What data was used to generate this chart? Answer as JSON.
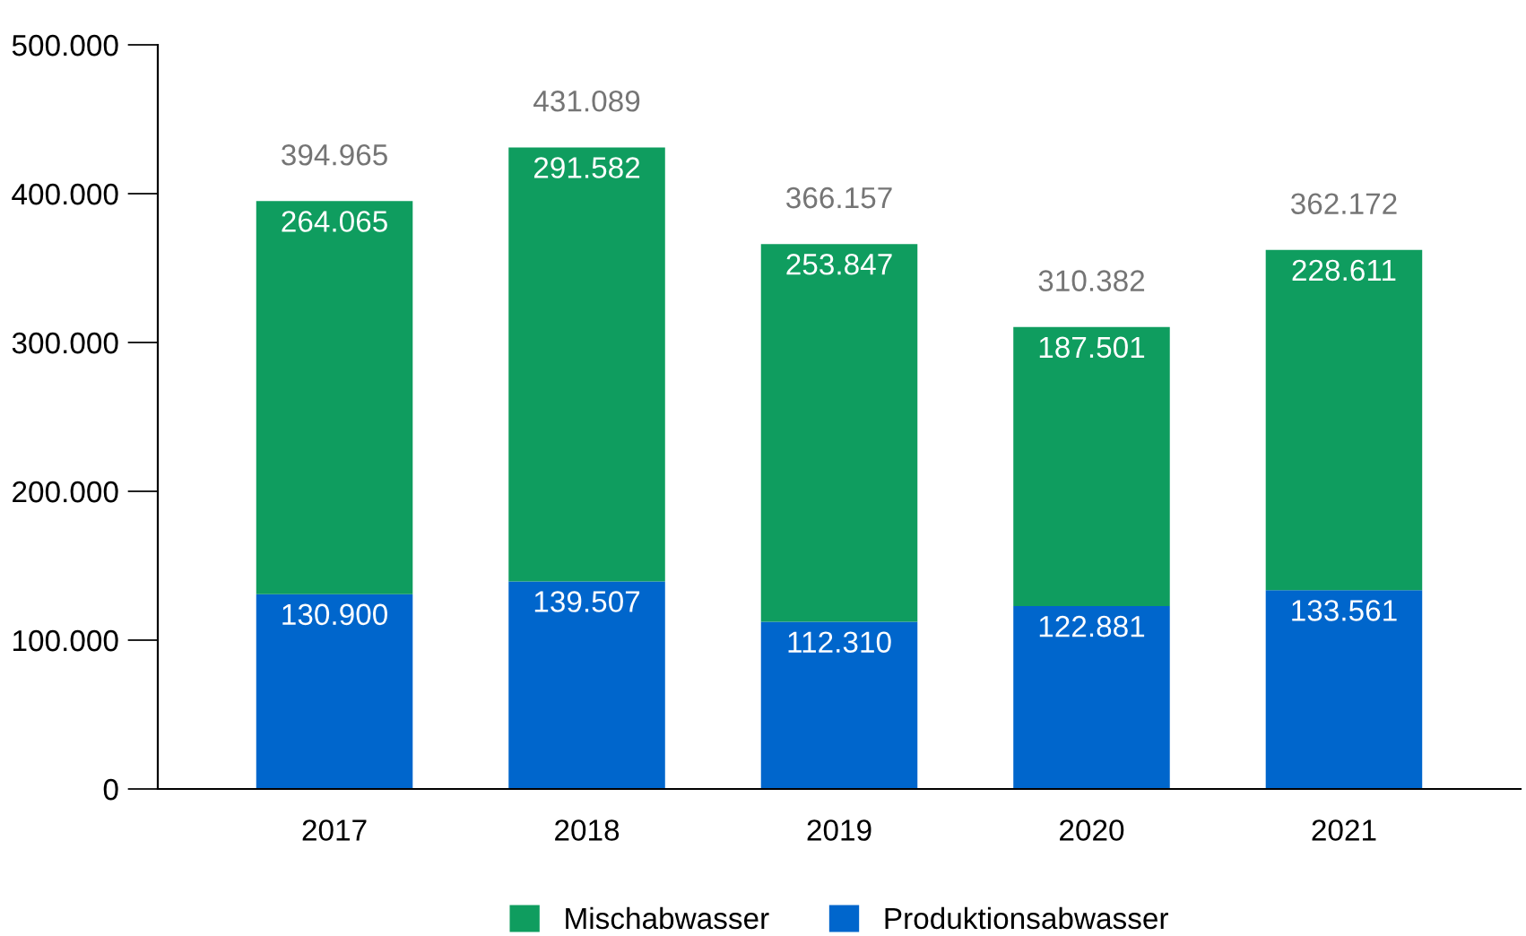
{
  "chart_data": {
    "type": "bar",
    "stacked": true,
    "categories": [
      "2017",
      "2018",
      "2019",
      "2020",
      "2021"
    ],
    "series": [
      {
        "name": "Produktionsabwasser",
        "color": "#0066cc",
        "values": [
          130900,
          139507,
          112310,
          122881,
          133561
        ],
        "value_labels": [
          "130.900",
          "139.507",
          "112.310",
          "122.881",
          "133.561"
        ]
      },
      {
        "name": "Mischabwasser",
        "color": "#0f9d5f",
        "values": [
          264065,
          291582,
          253847,
          187501,
          228611
        ],
        "value_labels": [
          "264.065",
          "291.582",
          "253.847",
          "187.501",
          "228.611"
        ]
      }
    ],
    "totals": [
      "394.965",
      "431.089",
      "366.157",
      "310.382",
      "362.172"
    ],
    "ylim": [
      0,
      500000
    ],
    "yticks": [
      0,
      {
        "value": 100000,
        "label": "100.000"
      },
      {
        "value": 200000,
        "label": "200.000"
      },
      {
        "value": 300000,
        "label": "300.000"
      },
      {
        "value": 400000,
        "label": "400.000"
      },
      {
        "value": 500000,
        "label": "500.000"
      }
    ],
    "grid": false,
    "legend": "bottom"
  }
}
